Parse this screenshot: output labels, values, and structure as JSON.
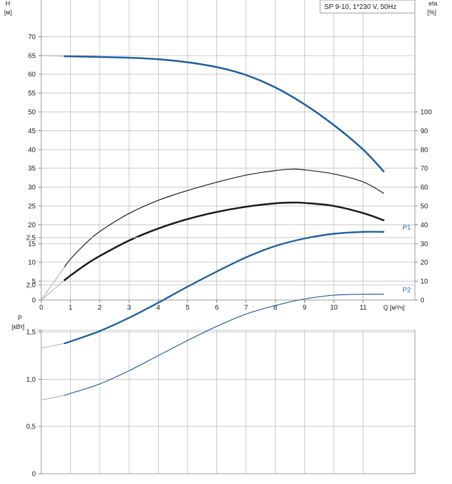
{
  "title": "SP 9-10, 1*230 V, 50Hz",
  "colors": {
    "head": "#1f5e9e",
    "power": "#1f5e9e",
    "efficiency": "#1a1a1a",
    "extrapolation": "#a9a9a9",
    "grid": "#c8c8c8",
    "label_blue": "#2e6fa8"
  },
  "chart_data": [
    {
      "type": "line",
      "title": "SP 9-10, 1*230 V, 50Hz",
      "xlabel": "Q [м³/ч]",
      "ylabel": "H\n[м]",
      "y2label": "eta\n[%]",
      "xlim": [
        0,
        12.3
      ],
      "ylim": [
        0,
        75
      ],
      "y2lim": [
        0,
        150
      ],
      "x_ticks": [
        0,
        1,
        2,
        3,
        4,
        5,
        6,
        7,
        8,
        9,
        10,
        11
      ],
      "x_tick_labels": [
        "0",
        "1",
        "2",
        "3",
        "4",
        "5",
        "6",
        "7",
        "8",
        "9",
        "10",
        "11"
      ],
      "y_ticks": [
        0,
        5,
        10,
        15,
        20,
        25,
        30,
        35,
        40,
        45,
        50,
        55,
        60,
        65,
        70
      ],
      "y_tick_labels": [
        "0",
        "5",
        "10",
        "15",
        "20",
        "25",
        "30",
        "35",
        "40",
        "45",
        "50",
        "55",
        "60",
        "65",
        "70"
      ],
      "y2_ticks": [
        0,
        10,
        20,
        30,
        40,
        50,
        60,
        70,
        80,
        90,
        100
      ],
      "y2_tick_labels": [
        "0",
        "10",
        "20",
        "30",
        "40",
        "50",
        "60",
        "70",
        "80",
        "90",
        "100"
      ],
      "grid": true,
      "series": [
        {
          "key": "head",
          "axis": "y",
          "style": "thick",
          "x": [
            0.8,
            1.5,
            2,
            3,
            4,
            5,
            6,
            7,
            8,
            9,
            10,
            11,
            11.7
          ],
          "y": [
            64.8,
            64.7,
            64.6,
            64.4,
            64,
            63.2,
            61.9,
            59.8,
            56.5,
            52,
            46.5,
            40,
            34.2
          ],
          "extension": {
            "x": [
              0,
              0.8
            ],
            "y": [
              65,
              64.8
            ]
          }
        },
        {
          "key": "eta1",
          "axis": "y2",
          "style": "thin",
          "x": [
            0.8,
            1,
            1.5,
            2,
            3,
            4,
            5,
            6,
            7,
            8,
            8.6,
            9,
            10,
            11,
            11.7
          ],
          "y": [
            17.6,
            21.8,
            29.8,
            36.4,
            46,
            53,
            58.2,
            62.6,
            66.4,
            68.8,
            69.6,
            69.2,
            67,
            62.8,
            56.8
          ],
          "extension": {
            "x": [
              0,
              0.8
            ],
            "y": [
              0,
              17.6
            ]
          }
        },
        {
          "key": "eta2",
          "axis": "y2",
          "style": "thick-black",
          "x": [
            0.8,
            1,
            1.5,
            2,
            3,
            4,
            5,
            6,
            7,
            8,
            8.6,
            9,
            10,
            11,
            11.7
          ],
          "y": [
            10.6,
            13,
            18.6,
            23.4,
            31.6,
            38,
            43,
            46.8,
            49.6,
            51.4,
            51.8,
            51.6,
            50,
            46.2,
            42.4
          ],
          "extension": {
            "x": [
              0,
              0.8
            ],
            "y": [
              0,
              10.6
            ]
          }
        }
      ]
    },
    {
      "type": "line",
      "xlim": [
        0,
        12.3
      ],
      "ylabel": "P\n[кВт]",
      "ylim": [
        0,
        3.1
      ],
      "y_ticks": [
        0,
        0.5,
        1.0,
        1.5,
        2.0,
        2.5
      ],
      "y_tick_labels": [
        "0",
        "0,5",
        "1,0",
        "1,5",
        "2,0",
        "2,5"
      ],
      "grid": true,
      "series": [
        {
          "name": "P1",
          "style": "thick",
          "x": [
            0.8,
            1,
            2,
            3,
            4,
            5,
            6,
            7,
            8,
            9,
            10,
            11,
            11.7
          ],
          "y": [
            1.38,
            1.4,
            1.51,
            1.65,
            1.81,
            1.98,
            2.14,
            2.29,
            2.41,
            2.49,
            2.54,
            2.56,
            2.56
          ],
          "extension": {
            "x": [
              0,
              0.8
            ],
            "y": [
              1.33,
              1.38
            ]
          }
        },
        {
          "name": "P2",
          "style": "thin",
          "x": [
            0.8,
            1,
            2,
            3,
            4,
            5,
            6,
            7,
            8,
            9,
            10,
            11,
            11.7
          ],
          "y": [
            0.83,
            0.85,
            0.95,
            1.09,
            1.25,
            1.41,
            1.56,
            1.69,
            1.78,
            1.85,
            1.89,
            1.9,
            1.9
          ],
          "extension": {
            "x": [
              0,
              0.8
            ],
            "y": [
              0.78,
              0.83
            ]
          }
        }
      ]
    }
  ]
}
